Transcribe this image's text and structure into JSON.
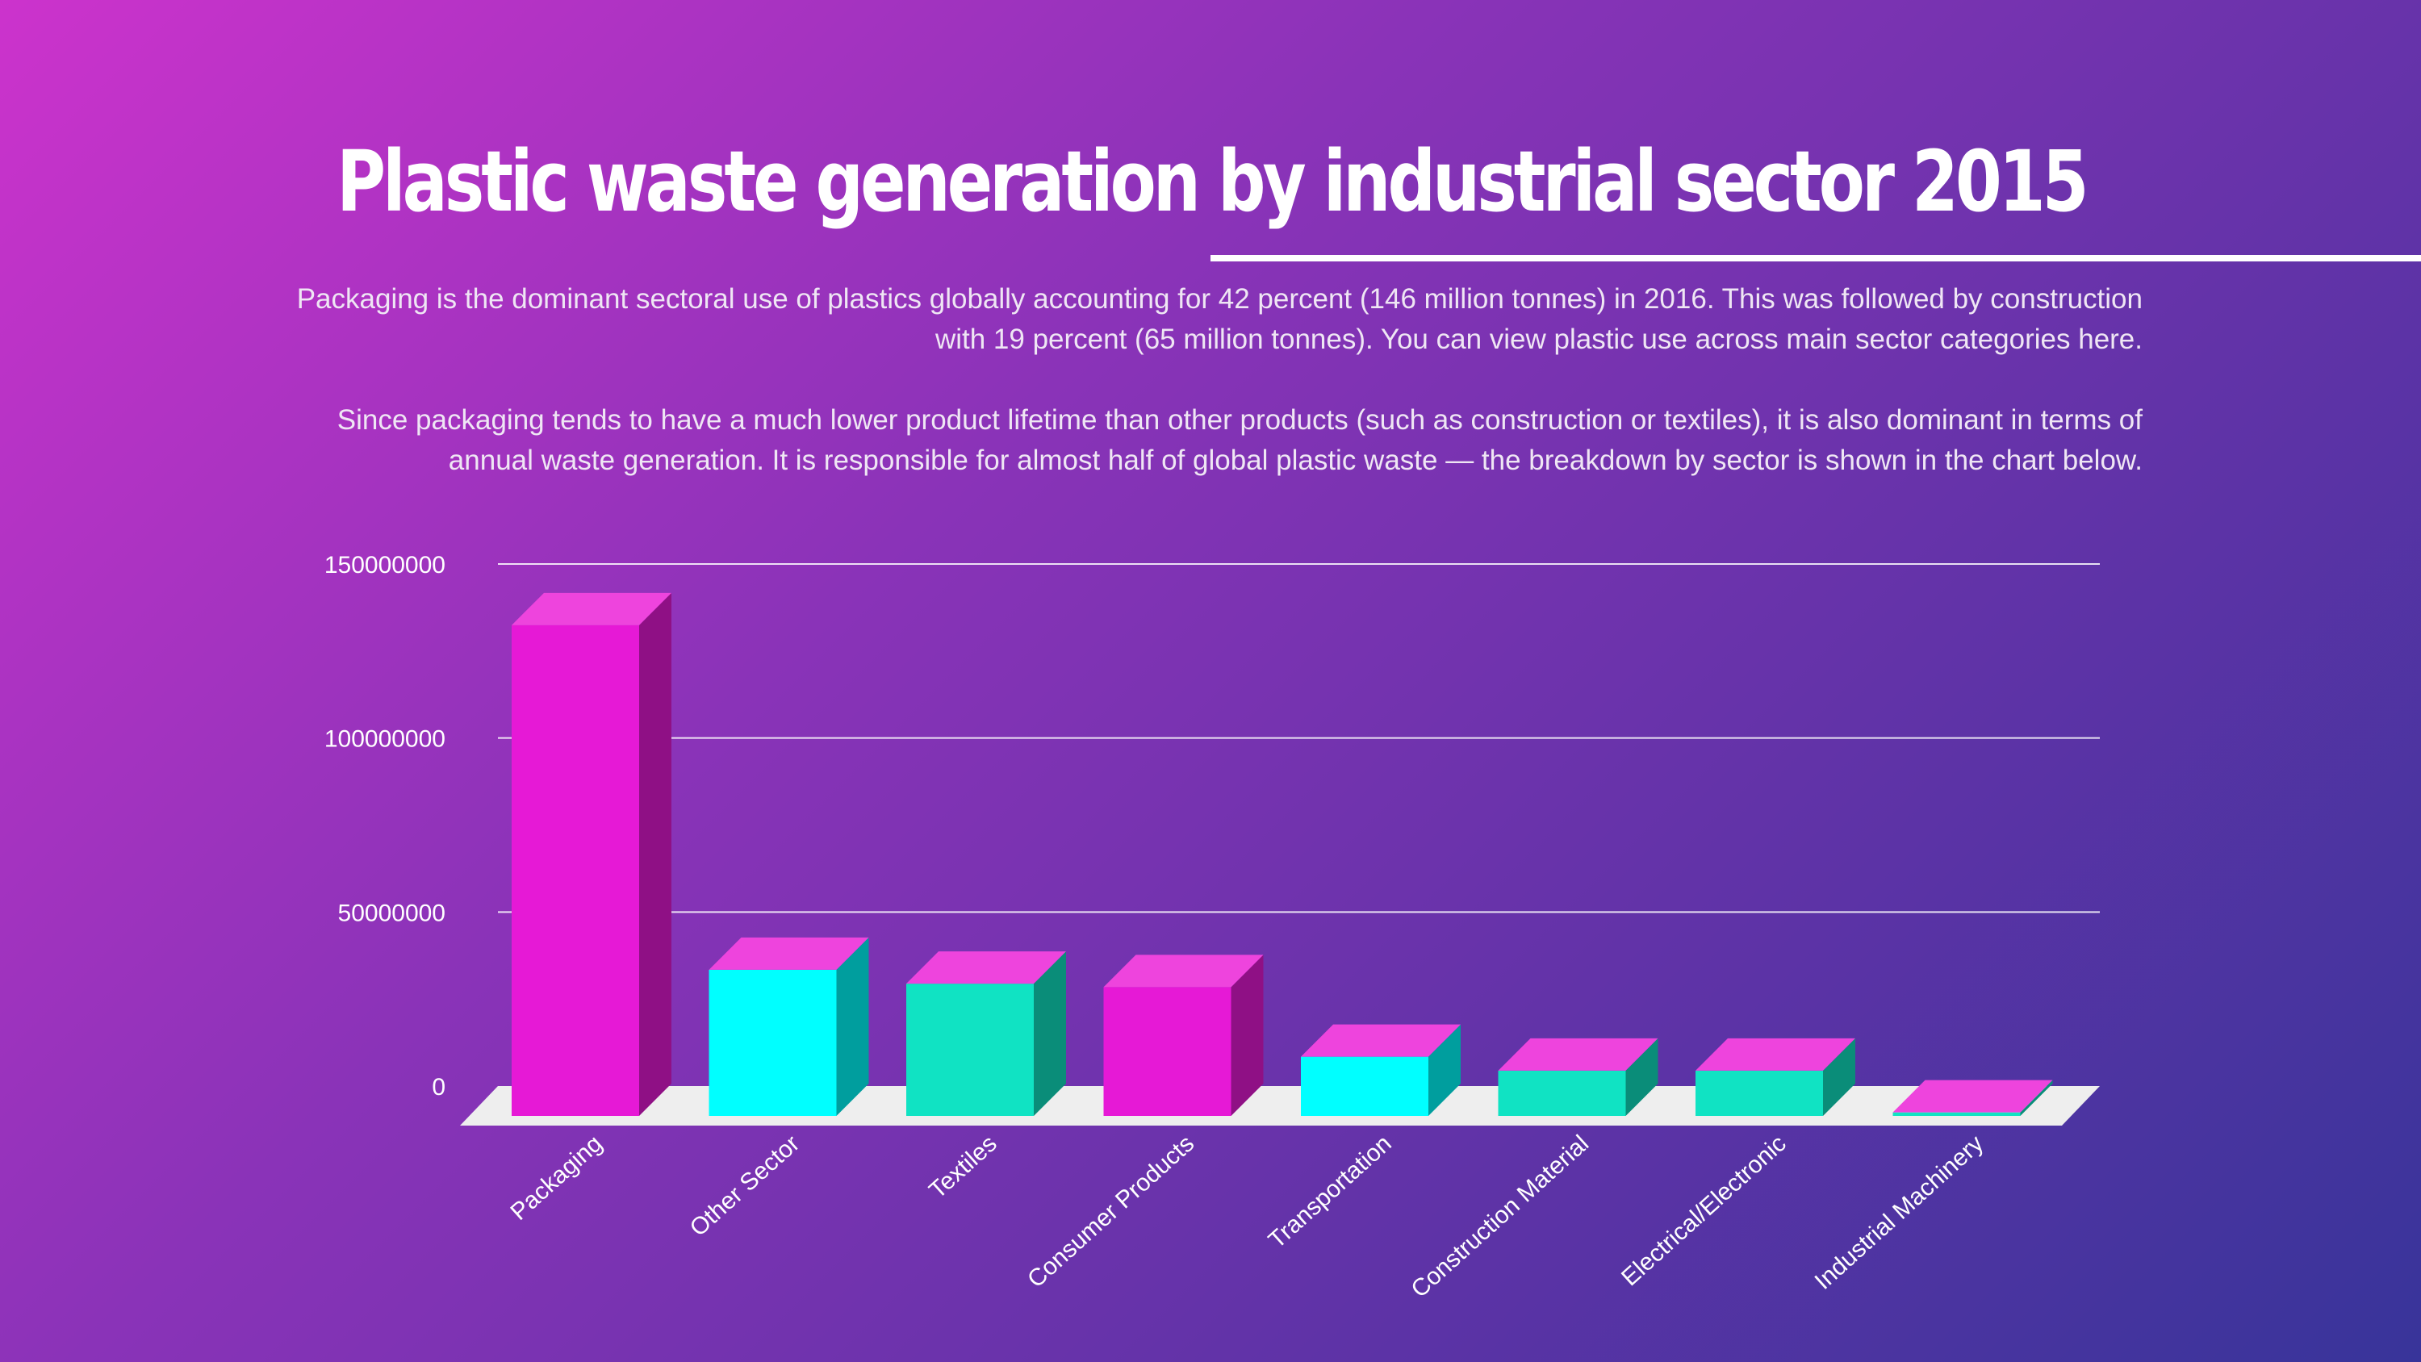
{
  "header": {
    "title": "Plastic waste generation by industrial sector 2015",
    "paragraph_1": "Packaging is the dominant sectoral use of plastics globally accounting for 42 percent (146 million tonnes) in 2016. This was followed by construction with 19 percent (65 million tonnes). You can view plastic use across main sector categories here.",
    "paragraph_2": "Since packaging tends to have a much lower product lifetime than other products (such as construction or textiles), it is also dominant in terms of annual waste generation. It is responsible for almost half of global plastic waste — the breakdown by sector is shown in the chart below."
  },
  "colors": {
    "magenta": "#e619d6",
    "cyan": "#00ffff",
    "teal": "#10e3c3",
    "top_face": "#ee44dd",
    "floor": "#eeeeee"
  },
  "chart_data": {
    "type": "bar",
    "style": "3d-columns",
    "categories": [
      "Packaging",
      "Other Sector",
      "Textiles",
      "Consumer Products",
      "Transportation",
      "Construction Material",
      "Electrical/Electronic",
      "Industrial Machinery"
    ],
    "values": [
      141000000,
      42000000,
      38000000,
      37000000,
      17000000,
      13000000,
      13000000,
      1000000
    ],
    "bar_colors": [
      "magenta",
      "cyan",
      "teal",
      "magenta",
      "cyan",
      "teal",
      "teal",
      "teal"
    ],
    "yticks": [
      0,
      50000000,
      100000000,
      150000000
    ],
    "ylim": [
      0,
      150000000
    ],
    "grid": true,
    "title": "",
    "xlabel": "",
    "ylabel": ""
  }
}
